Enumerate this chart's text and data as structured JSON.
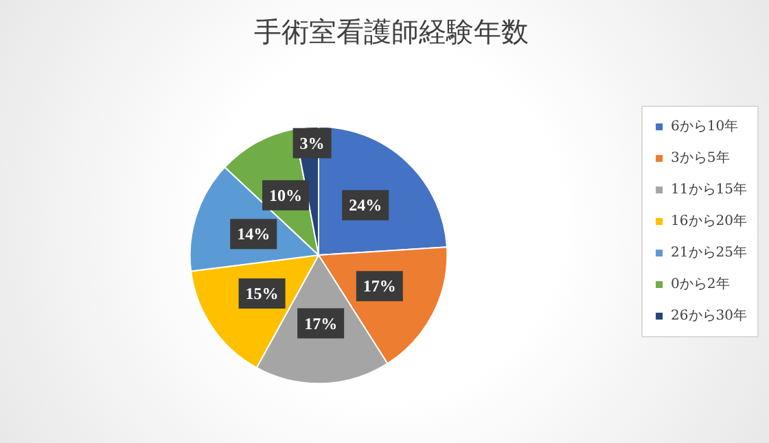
{
  "chart_data": {
    "type": "pie",
    "title": "手術室看護師経験年数",
    "categories": [
      "6から10年",
      "3から5年",
      "11から15年",
      "16から20年",
      "21から25年",
      "0から2年",
      "26から30年"
    ],
    "values": [
      24,
      17,
      17,
      15,
      14,
      10,
      3
    ],
    "value_labels": [
      "24%",
      "17%",
      "17%",
      "15%",
      "14%",
      "10%",
      "3%"
    ],
    "colors": [
      "#4472c4",
      "#ed7d31",
      "#a5a5a5",
      "#ffc000",
      "#5b9bd5",
      "#70ad47",
      "#264478"
    ],
    "legend": "right"
  }
}
